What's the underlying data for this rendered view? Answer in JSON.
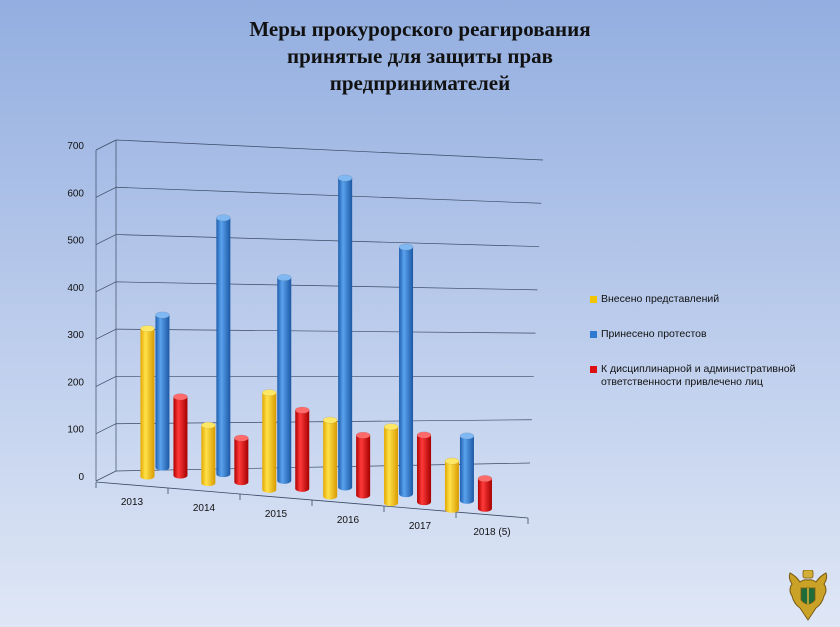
{
  "title_lines": [
    "Меры прокурорского реагирования",
    "принятые для защиты прав",
    "предпринимателей"
  ],
  "colors": {
    "yellow": "#f2c500",
    "blue": "#2f7ad0",
    "red": "#dd1111"
  },
  "legend_placement": "right",
  "emblem_icon": "prosecutor-emblem-icon",
  "chart_data": {
    "type": "bar",
    "title": "Меры прокурорского реагирования принятые для защиты прав предпринимателей",
    "categories": [
      "2013",
      "2014",
      "2015",
      "2016",
      "2017",
      "2018 (5)"
    ],
    "y_ticks": [
      "0",
      "100",
      "200",
      "300",
      "400",
      "500",
      "600",
      "700"
    ],
    "ylim": [
      0,
      700
    ],
    "grid": true,
    "series": [
      {
        "name": "Внесено представлений",
        "color": "#f2c500",
        "values": [
          320,
          125,
          210,
          165,
          165,
          105
        ]
      },
      {
        "name": "Принесено протестов",
        "color": "#2f7ad0",
        "values": [
          330,
          555,
          440,
          670,
          535,
          140
        ]
      },
      {
        "name": "К дисциплинарной и административной ответственности привлечено лиц",
        "color": "#dd1111",
        "values": [
          170,
          95,
          170,
          130,
          145,
          65
        ]
      }
    ]
  }
}
